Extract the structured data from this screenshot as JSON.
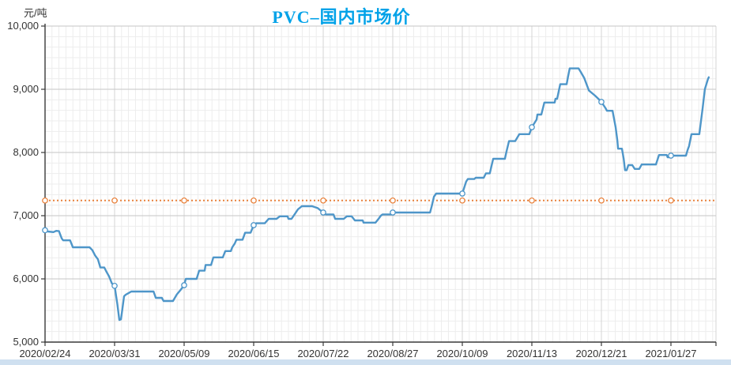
{
  "title": "PVC–国内市场价",
  "y_unit": "元/吨",
  "colors": {
    "title": "#00a2e8",
    "price_line": "#4e96c9",
    "reference_line": "#e8823d",
    "axis": "#3a3a3a",
    "grid_major": "#c6c6c6",
    "grid_minor": "#ededed",
    "tick_label": "#333333",
    "scrollbar": "#cfe0f0"
  },
  "chart_data": {
    "type": "line",
    "title": "PVC–国内市场价",
    "ylabel": "元/吨",
    "xlabel": "",
    "ylim": [
      5000,
      10000
    ],
    "grid": true,
    "legend_position": "none",
    "y_ticks": [
      [
        10000,
        "10,000"
      ],
      [
        9000,
        "9,000"
      ],
      [
        8000,
        "8,000"
      ],
      [
        7000,
        "7,000"
      ],
      [
        6000,
        "6,000"
      ],
      [
        5000,
        "5,000"
      ]
    ],
    "x_tick_labels": [
      "2020/02/24",
      "2020/03/31",
      "2020/05/09",
      "2020/06/15",
      "2020/07/22",
      "2020/08/27",
      "2020/10/09",
      "2020/11/13",
      "2020/12/21",
      "2021/01/27"
    ],
    "x_tick_days": [
      0,
      25,
      50,
      75,
      100,
      125,
      150,
      175,
      200,
      225
    ],
    "x_domain_days": [
      0,
      241.3
    ],
    "marker_days": [
      0,
      25,
      50,
      75,
      100,
      125,
      150,
      175,
      200,
      225
    ],
    "series": [
      {
        "id": "price",
        "style": "solid",
        "color": "#4e96c9",
        "marker_values": [
          6770,
          5890,
          5900,
          6850,
          7050,
          7050,
          7350,
          8400,
          8800,
          7950
        ],
        "points": [
          [
            0,
            6770
          ],
          [
            1,
            6750
          ],
          [
            3,
            6740
          ],
          [
            4,
            6760
          ],
          [
            5,
            6755
          ],
          [
            6,
            6640
          ],
          [
            6.5,
            6610
          ],
          [
            9,
            6610
          ],
          [
            10,
            6500
          ],
          [
            16,
            6500
          ],
          [
            17,
            6455
          ],
          [
            18,
            6370
          ],
          [
            19,
            6310
          ],
          [
            19.9,
            6180
          ],
          [
            21.3,
            6180
          ],
          [
            22,
            6120
          ],
          [
            23,
            6040
          ],
          [
            24,
            5930
          ],
          [
            25,
            5890
          ],
          [
            26,
            5600
          ],
          [
            26.7,
            5350
          ],
          [
            27.3,
            5360
          ],
          [
            28.4,
            5725
          ],
          [
            29,
            5750
          ],
          [
            29.8,
            5770
          ],
          [
            31,
            5800
          ],
          [
            39,
            5800
          ],
          [
            39.8,
            5700
          ],
          [
            42,
            5700
          ],
          [
            42.6,
            5650
          ],
          [
            46,
            5650
          ],
          [
            47.4,
            5755
          ],
          [
            48.8,
            5830
          ],
          [
            50,
            5900
          ],
          [
            50.6,
            6000
          ],
          [
            54.5,
            6000
          ],
          [
            55.4,
            6130
          ],
          [
            57.4,
            6130
          ],
          [
            57.7,
            6220
          ],
          [
            59.7,
            6220
          ],
          [
            60.5,
            6340
          ],
          [
            63.9,
            6340
          ],
          [
            64.8,
            6440
          ],
          [
            66.8,
            6440
          ],
          [
            67.3,
            6500
          ],
          [
            68.2,
            6560
          ],
          [
            68.8,
            6620
          ],
          [
            71,
            6620
          ],
          [
            71.6,
            6690
          ],
          [
            71.9,
            6730
          ],
          [
            73.9,
            6730
          ],
          [
            75,
            6850
          ],
          [
            75.9,
            6880
          ],
          [
            79,
            6880
          ],
          [
            80.4,
            6950
          ],
          [
            83.2,
            6950
          ],
          [
            84.4,
            6990
          ],
          [
            87.2,
            6990
          ],
          [
            87.5,
            6950
          ],
          [
            88.6,
            6950
          ],
          [
            90,
            7040
          ],
          [
            90.9,
            7100
          ],
          [
            92.3,
            7150
          ],
          [
            96,
            7150
          ],
          [
            98,
            7120
          ],
          [
            100,
            7050
          ],
          [
            100.9,
            7020
          ],
          [
            103.7,
            7020
          ],
          [
            104.3,
            6950
          ],
          [
            107.4,
            6950
          ],
          [
            108.5,
            6990
          ],
          [
            110.2,
            6990
          ],
          [
            111.4,
            6925
          ],
          [
            114.2,
            6925
          ],
          [
            114.5,
            6890
          ],
          [
            118.8,
            6890
          ],
          [
            119.9,
            6950
          ],
          [
            120.7,
            7000
          ],
          [
            121.3,
            7020
          ],
          [
            124.4,
            7020
          ],
          [
            125,
            7050
          ],
          [
            138.4,
            7050
          ],
          [
            139,
            7150
          ],
          [
            139.8,
            7300
          ],
          [
            140.6,
            7350
          ],
          [
            150,
            7350
          ],
          [
            151.4,
            7540
          ],
          [
            152,
            7580
          ],
          [
            154.3,
            7580
          ],
          [
            154.8,
            7600
          ],
          [
            157.7,
            7600
          ],
          [
            158.5,
            7670
          ],
          [
            159.9,
            7670
          ],
          [
            160.5,
            7790
          ],
          [
            161.1,
            7900
          ],
          [
            165.3,
            7900
          ],
          [
            165.9,
            8020
          ],
          [
            166.8,
            8180
          ],
          [
            169,
            8180
          ],
          [
            170.5,
            8290
          ],
          [
            174.1,
            8290
          ],
          [
            175,
            8400
          ],
          [
            176.7,
            8520
          ],
          [
            177,
            8600
          ],
          [
            178.4,
            8600
          ],
          [
            179.5,
            8790
          ],
          [
            183.2,
            8790
          ],
          [
            183.5,
            8850
          ],
          [
            184.1,
            8850
          ],
          [
            185.2,
            9080
          ],
          [
            187.5,
            9080
          ],
          [
            188,
            9200
          ],
          [
            188.6,
            9330
          ],
          [
            191.8,
            9330
          ],
          [
            192.5,
            9280
          ],
          [
            193.8,
            9180
          ],
          [
            195.5,
            8980
          ],
          [
            197.7,
            8900
          ],
          [
            198.9,
            8850
          ],
          [
            200,
            8800
          ],
          [
            201.5,
            8700
          ],
          [
            202,
            8660
          ],
          [
            204,
            8660
          ],
          [
            205.1,
            8400
          ],
          [
            205.7,
            8200
          ],
          [
            206,
            8060
          ],
          [
            207.4,
            8060
          ],
          [
            208,
            7900
          ],
          [
            208.5,
            7720
          ],
          [
            209.1,
            7720
          ],
          [
            209.7,
            7800
          ],
          [
            211.1,
            7800
          ],
          [
            212,
            7740
          ],
          [
            213.6,
            7740
          ],
          [
            214.5,
            7810
          ],
          [
            219.6,
            7810
          ],
          [
            220.7,
            7960
          ],
          [
            223.5,
            7960
          ],
          [
            223.8,
            7925
          ],
          [
            224.4,
            7925
          ],
          [
            225,
            7950
          ],
          [
            230.4,
            7950
          ],
          [
            231,
            8040
          ],
          [
            231.5,
            8100
          ],
          [
            232.4,
            8290
          ],
          [
            235.2,
            8290
          ],
          [
            236.4,
            8700
          ],
          [
            237.2,
            9000
          ],
          [
            238.3,
            9160
          ],
          [
            238.6,
            9190
          ]
        ]
      },
      {
        "id": "reference",
        "style": "dotted",
        "color": "#e8823d",
        "value": 7240,
        "x_range": [
          0,
          241.3
        ]
      }
    ]
  }
}
